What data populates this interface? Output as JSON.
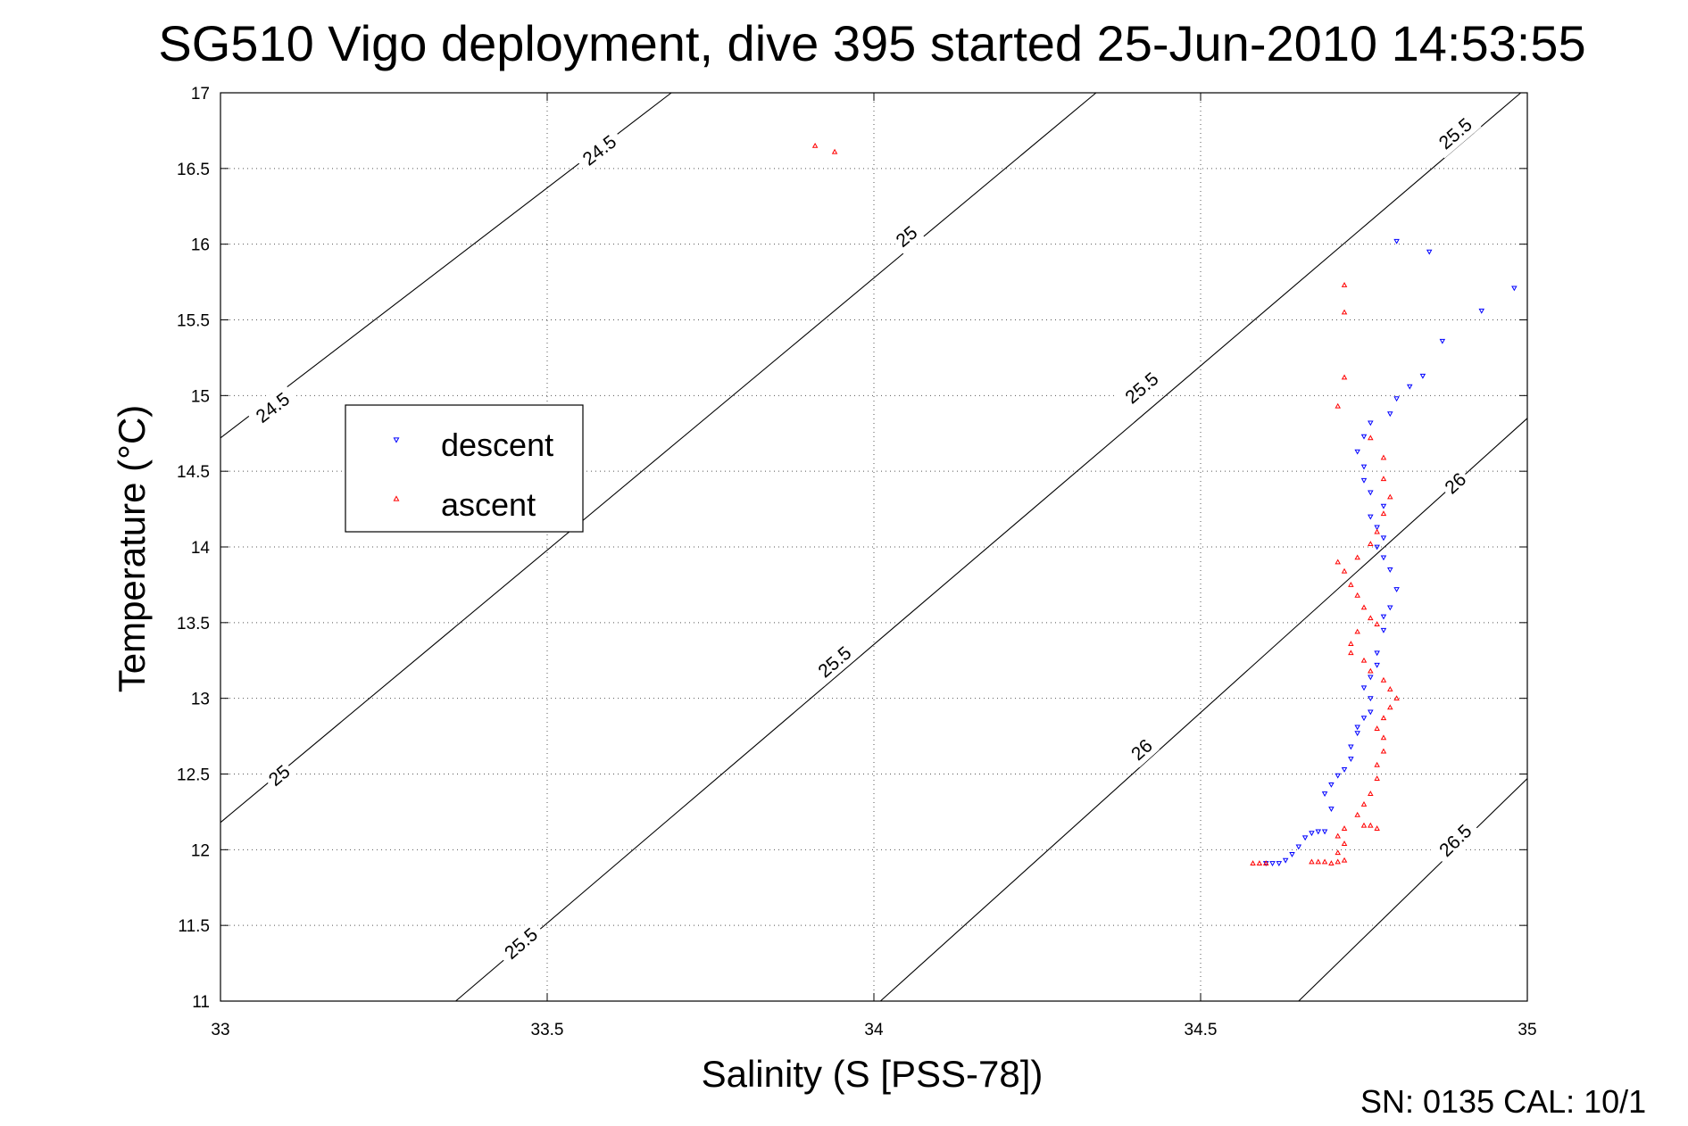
{
  "title": "SG510 Vigo deployment, dive 395 started 25-Jun-2010 14:53:55",
  "footer_text": "SN: 0135  CAL: 10/1",
  "chart_data": {
    "type": "scatter",
    "title": "SG510 Vigo deployment, dive 395 started 25-Jun-2010 14:53:55",
    "xlabel": "Salinity (S [PSS-78])",
    "ylabel": "Temperature (°C)",
    "xlim": [
      33,
      35
    ],
    "ylim": [
      11,
      17
    ],
    "x_ticks": [
      33,
      33.5,
      34,
      34.5,
      35
    ],
    "x_tick_labels": [
      "33",
      "33.5",
      "34",
      "34.5",
      "35"
    ],
    "y_ticks": [
      11,
      11.5,
      12,
      12.5,
      13,
      13.5,
      14,
      14.5,
      15,
      15.5,
      16,
      16.5,
      17
    ],
    "y_tick_labels": [
      "11",
      "11.5",
      "12",
      "12.5",
      "13",
      "13.5",
      "14",
      "14.5",
      "15",
      "15.5",
      "16",
      "16.5",
      "17"
    ],
    "grid": true,
    "legend": {
      "placement": "left-middle",
      "entries": [
        "descent",
        "ascent"
      ]
    },
    "colors": {
      "descent": "#0000ff",
      "ascent": "#ff0000",
      "contour": "#000000"
    },
    "contours": [
      {
        "level": "24.5",
        "points": [
          [
            33,
            14.72
          ],
          [
            33.69,
            17
          ]
        ],
        "labels": [
          [
            33.08,
            14.92
          ],
          [
            33.58,
            16.62
          ]
        ]
      },
      {
        "level": "25",
        "points": [
          [
            33,
            12.18
          ],
          [
            34.34,
            17
          ]
        ],
        "labels": [
          [
            33.09,
            12.49
          ],
          [
            34.05,
            16.05
          ]
        ]
      },
      {
        "level": "25.5",
        "points": [
          [
            33.36,
            11
          ],
          [
            34.99,
            17
          ]
        ],
        "labels": [
          [
            33.46,
            11.38
          ],
          [
            33.94,
            13.24
          ],
          [
            34.41,
            15.05
          ],
          [
            34.89,
            16.73
          ]
        ]
      },
      {
        "level": "26",
        "points": [
          [
            34.01,
            11
          ],
          [
            35,
            14.85
          ]
        ],
        "labels": [
          [
            34.41,
            12.66
          ],
          [
            34.89,
            14.42
          ]
        ]
      },
      {
        "level": "26.5",
        "points": [
          [
            34.65,
            11
          ],
          [
            35,
            12.47
          ]
        ],
        "labels": [
          [
            34.89,
            12.06
          ]
        ]
      }
    ],
    "series": [
      {
        "name": "descent",
        "marker": "triangle-down",
        "points": [
          [
            34.6,
            11.91
          ],
          [
            34.61,
            11.91
          ],
          [
            34.62,
            11.91
          ],
          [
            34.63,
            11.93
          ],
          [
            34.64,
            11.97
          ],
          [
            34.65,
            12.02
          ],
          [
            34.66,
            12.08
          ],
          [
            34.67,
            12.11
          ],
          [
            34.68,
            12.12
          ],
          [
            34.69,
            12.12
          ],
          [
            34.7,
            12.27
          ],
          [
            34.69,
            12.37
          ],
          [
            34.7,
            12.43
          ],
          [
            34.71,
            12.49
          ],
          [
            34.72,
            12.53
          ],
          [
            34.73,
            12.6
          ],
          [
            34.73,
            12.68
          ],
          [
            34.74,
            12.77
          ],
          [
            34.74,
            12.81
          ],
          [
            34.75,
            12.87
          ],
          [
            34.76,
            12.91
          ],
          [
            34.76,
            13.0
          ],
          [
            34.75,
            13.07
          ],
          [
            34.76,
            13.14
          ],
          [
            34.77,
            13.22
          ],
          [
            34.77,
            13.3
          ],
          [
            34.78,
            13.45
          ],
          [
            34.78,
            13.54
          ],
          [
            34.79,
            13.6
          ],
          [
            34.8,
            13.72
          ],
          [
            34.79,
            13.85
          ],
          [
            34.78,
            13.93
          ],
          [
            34.77,
            14.0
          ],
          [
            34.78,
            14.06
          ],
          [
            34.77,
            14.13
          ],
          [
            34.76,
            14.2
          ],
          [
            34.78,
            14.27
          ],
          [
            34.76,
            14.36
          ],
          [
            34.75,
            14.44
          ],
          [
            34.75,
            14.53
          ],
          [
            34.74,
            14.63
          ],
          [
            34.75,
            14.73
          ],
          [
            34.76,
            14.82
          ],
          [
            34.79,
            14.88
          ],
          [
            34.8,
            14.98
          ],
          [
            34.82,
            15.06
          ],
          [
            34.84,
            15.13
          ],
          [
            34.87,
            15.36
          ],
          [
            34.93,
            15.56
          ],
          [
            34.98,
            15.71
          ],
          [
            34.85,
            15.95
          ],
          [
            34.8,
            16.02
          ]
        ]
      },
      {
        "name": "ascent",
        "marker": "triangle-up",
        "points": [
          [
            34.58,
            11.91
          ],
          [
            34.59,
            11.91
          ],
          [
            34.6,
            11.91
          ],
          [
            34.67,
            11.92
          ],
          [
            34.68,
            11.92
          ],
          [
            34.69,
            11.92
          ],
          [
            34.7,
            11.91
          ],
          [
            34.71,
            11.92
          ],
          [
            34.72,
            11.93
          ],
          [
            34.71,
            11.98
          ],
          [
            34.72,
            12.04
          ],
          [
            34.71,
            12.09
          ],
          [
            34.72,
            12.14
          ],
          [
            34.75,
            12.16
          ],
          [
            34.76,
            12.16
          ],
          [
            34.77,
            12.14
          ],
          [
            34.74,
            12.23
          ],
          [
            34.75,
            12.3
          ],
          [
            34.76,
            12.37
          ],
          [
            34.77,
            12.47
          ],
          [
            34.77,
            12.56
          ],
          [
            34.78,
            12.65
          ],
          [
            34.78,
            12.74
          ],
          [
            34.77,
            12.8
          ],
          [
            34.78,
            12.87
          ],
          [
            34.79,
            12.94
          ],
          [
            34.8,
            13.0
          ],
          [
            34.79,
            13.06
          ],
          [
            34.78,
            13.12
          ],
          [
            34.76,
            13.18
          ],
          [
            34.75,
            13.25
          ],
          [
            34.73,
            13.3
          ],
          [
            34.73,
            13.36
          ],
          [
            34.74,
            13.44
          ],
          [
            34.77,
            13.49
          ],
          [
            34.76,
            13.53
          ],
          [
            34.75,
            13.6
          ],
          [
            34.74,
            13.68
          ],
          [
            34.73,
            13.75
          ],
          [
            34.72,
            13.84
          ],
          [
            34.71,
            13.9
          ],
          [
            34.74,
            13.93
          ],
          [
            34.76,
            14.02
          ],
          [
            34.77,
            14.1
          ],
          [
            34.78,
            14.22
          ],
          [
            34.79,
            14.33
          ],
          [
            34.78,
            14.45
          ],
          [
            34.78,
            14.59
          ],
          [
            34.76,
            14.72
          ],
          [
            34.71,
            14.93
          ],
          [
            34.72,
            15.12
          ],
          [
            34.72,
            15.55
          ],
          [
            34.72,
            15.73
          ],
          [
            33.91,
            16.65
          ],
          [
            33.94,
            16.61
          ]
        ]
      }
    ]
  }
}
